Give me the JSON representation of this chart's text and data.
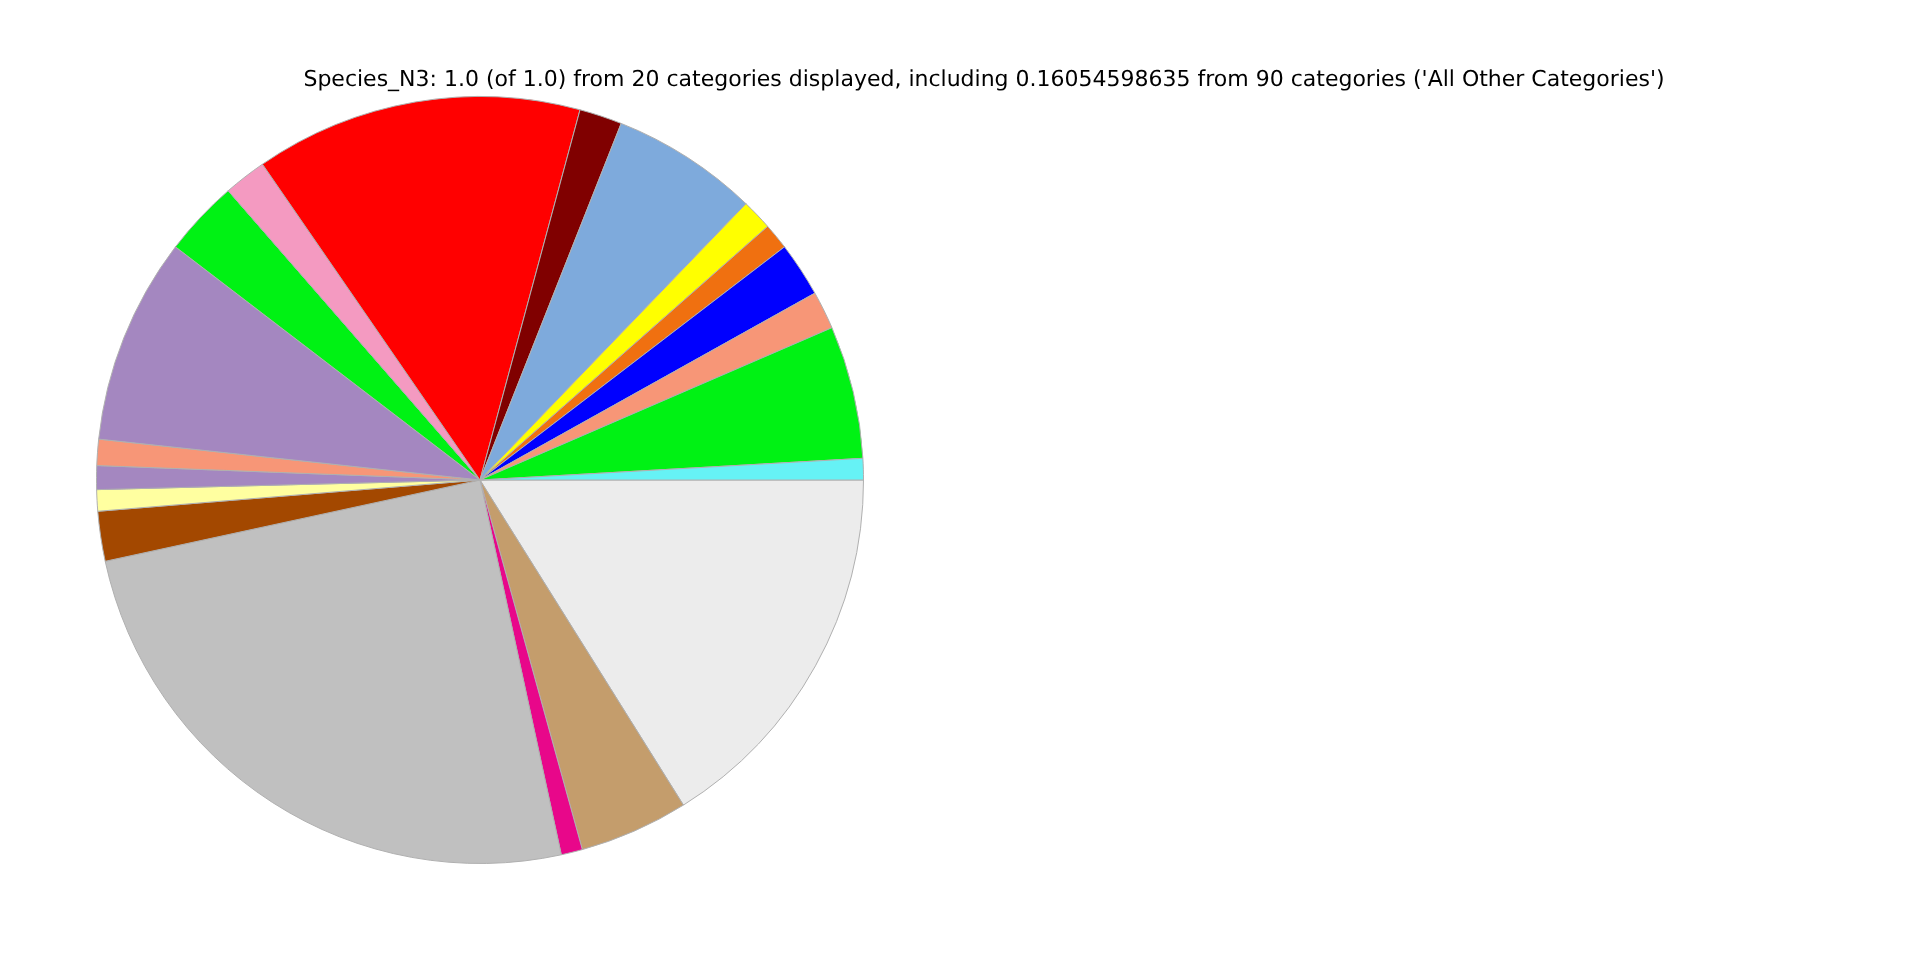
{
  "chart_data": {
    "type": "pie",
    "title": "Species_N3: 1.0 (of 1.0) from 20 categories displayed, including 0.16054598635 from 90 categories ('All Other Categories')",
    "categories": [
      null,
      null,
      null,
      null,
      null,
      null,
      null,
      null,
      null,
      null,
      null,
      null,
      null,
      null,
      null,
      null,
      null,
      null,
      null,
      null
    ],
    "values": [
      0.9,
      5.6,
      1.6,
      2.3,
      1.1,
      1.3,
      6.2,
      1.8,
      13.8,
      1.8,
      3.2,
      8.7,
      1.1,
      1.0,
      0.9,
      2.1,
      25.0,
      0.9,
      4.6,
      16.1
    ],
    "colors": [
      "#66f2f5",
      "#00f214",
      "#f79677",
      "#0000ff",
      "#f07010",
      "#ffff00",
      "#7eaadc",
      "#800000",
      "#ff0000",
      "#f49ac1",
      "#00f214",
      "#a487c0",
      "#f79677",
      "#a487c0",
      "#ffffa0",
      "#a34800",
      "#c0c0c0",
      "#e8078a",
      "#c49d6c",
      "#ececec"
    ],
    "legend": false
  }
}
